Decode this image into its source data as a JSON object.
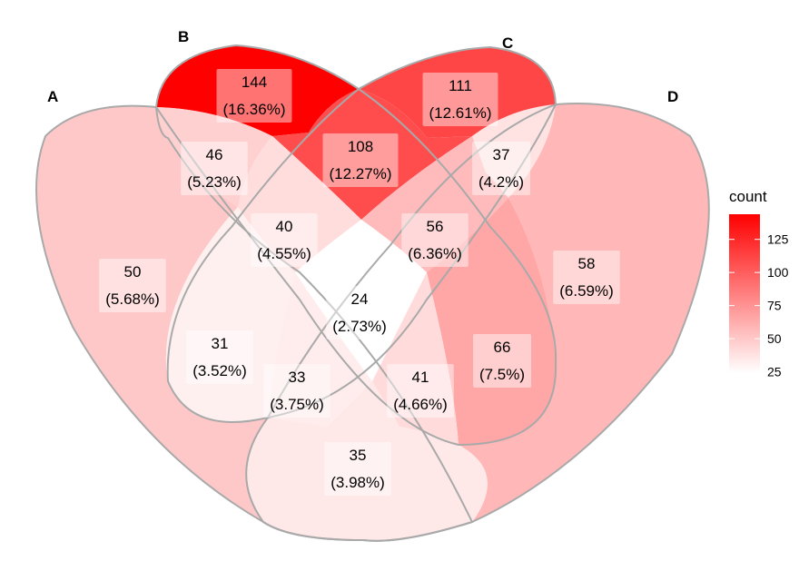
{
  "chart_data": {
    "type": "venn",
    "sets": [
      "A",
      "B",
      "C",
      "D"
    ],
    "regions": [
      {
        "sets": "B",
        "count": 144,
        "percent": "(16.36%)"
      },
      {
        "sets": "C",
        "count": 111,
        "percent": "(12.61%)"
      },
      {
        "sets": "A∩B",
        "count": 46,
        "percent": "(5.23%)"
      },
      {
        "sets": "B∩C",
        "count": 108,
        "percent": "(12.27%)"
      },
      {
        "sets": "C∩D",
        "count": 37,
        "percent": "(4.2%)"
      },
      {
        "sets": "A∩B∩C",
        "count": 40,
        "percent": "(4.55%)"
      },
      {
        "sets": "B∩C∩D",
        "count": 56,
        "percent": "(6.36%)"
      },
      {
        "sets": "A",
        "count": 50,
        "percent": "(5.68%)"
      },
      {
        "sets": "D",
        "count": 58,
        "percent": "(6.59%)"
      },
      {
        "sets": "A∩B∩C∩D",
        "count": 24,
        "percent": "(2.73%)"
      },
      {
        "sets": "A∩C",
        "count": 31,
        "percent": "(3.52%)"
      },
      {
        "sets": "B∩D",
        "count": 66,
        "percent": "(7.5%)"
      },
      {
        "sets": "A∩C∩D",
        "count": 33,
        "percent": "(3.75%)"
      },
      {
        "sets": "A∩B∩D",
        "count": 41,
        "percent": "(4.66%)"
      },
      {
        "sets": "A∩D",
        "count": 35,
        "percent": "(3.98%)"
      }
    ],
    "legend": {
      "title": "count",
      "ticks": [
        25,
        50,
        75,
        100,
        125
      ],
      "range": [
        24,
        144
      ],
      "color_low": "#ffffff",
      "color_high": "#ff0000",
      "position": "right"
    },
    "outline_color": "#a9a9a9"
  }
}
